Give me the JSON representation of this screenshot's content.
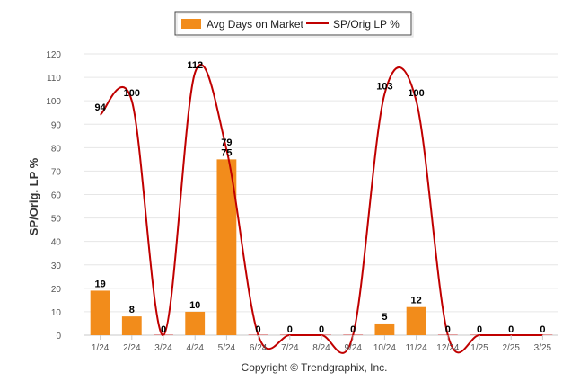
{
  "chart_data": {
    "type": "bar",
    "categories": [
      "1/24",
      "2/24",
      "3/24",
      "4/24",
      "5/24",
      "6/24",
      "7/24",
      "8/24",
      "9/24",
      "10/24",
      "11/24",
      "12/24",
      "1/25",
      "2/25",
      "3/25"
    ],
    "series": [
      {
        "name": "Avg Days on Market",
        "type": "bar",
        "values": [
          19,
          8,
          0,
          10,
          75,
          0,
          0,
          0,
          0,
          5,
          12,
          0,
          0,
          0,
          0
        ],
        "color": "#f28c1b"
      },
      {
        "name": "SP/Orig LP %",
        "type": "line",
        "values": [
          94,
          100,
          0,
          112,
          79,
          0,
          0,
          0,
          0,
          103,
          100,
          0,
          0,
          0,
          0
        ],
        "color": "#c00000"
      }
    ],
    "title": "",
    "xlabel": "",
    "ylabel": "SP/Orig. LP %",
    "ylim": [
      0,
      120
    ],
    "yticks": [
      0,
      10,
      20,
      30,
      40,
      50,
      60,
      70,
      80,
      90,
      100,
      110,
      120
    ],
    "grid": true,
    "legend_position": "top-center"
  },
  "footer": {
    "copyright": "Copyright © Trendgraphix, Inc."
  }
}
